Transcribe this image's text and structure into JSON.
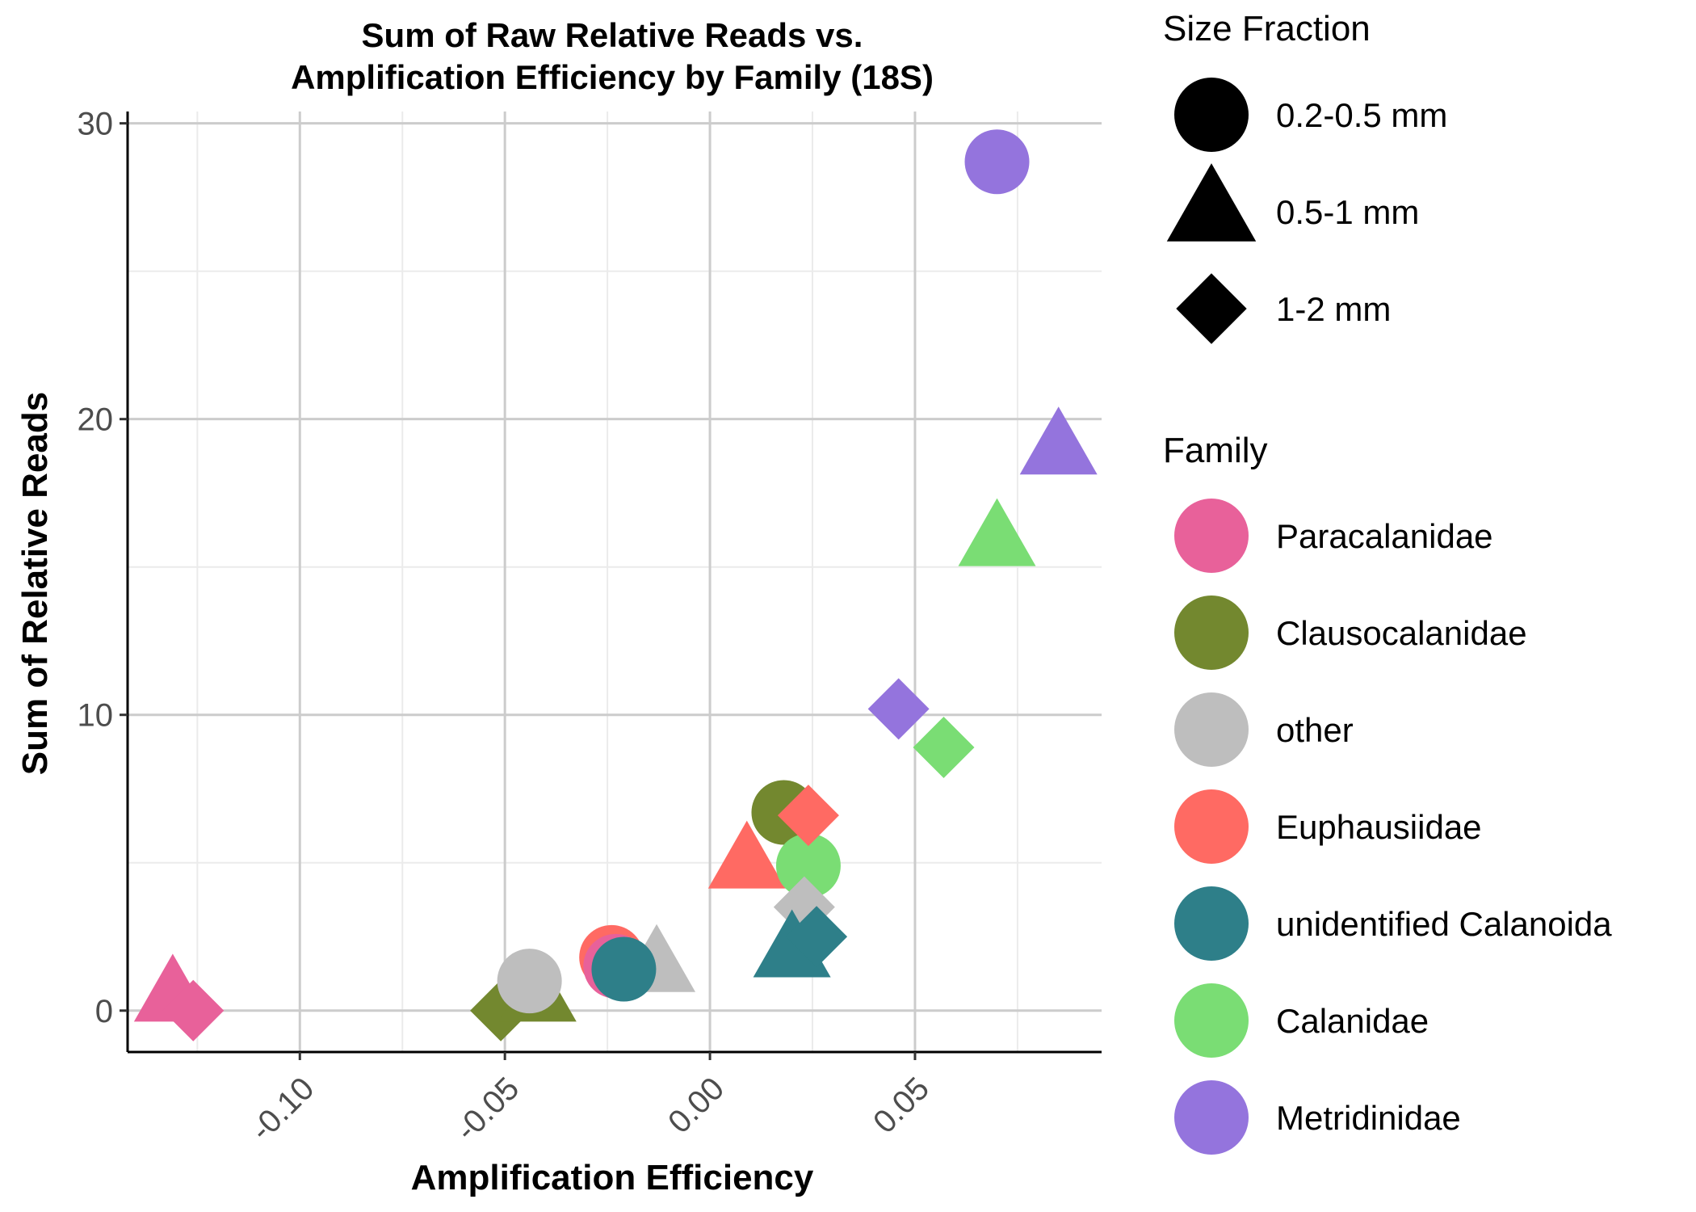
{
  "chart_data": {
    "type": "scatter",
    "title": "Sum of Raw Relative Reads vs.",
    "subtitle": "Amplification Efficiency by Family (18S)",
    "xlabel": "Amplification Efficiency",
    "ylabel": "Sum of Relative Reads",
    "xlim": [
      -0.142,
      0.0955
    ],
    "ylim": [
      -1.4,
      30.4
    ],
    "x_ticks": [
      -0.1,
      -0.05,
      0.0,
      0.05
    ],
    "x_tick_labels": [
      "-0.10",
      "-0.05",
      "0.00",
      "0.05"
    ],
    "y_ticks": [
      0,
      10,
      20,
      30
    ],
    "y_tick_labels": [
      "0",
      "10",
      "20",
      "30"
    ],
    "grid": true,
    "legend_position": "right",
    "shape_legend": {
      "title": "Size Fraction",
      "items": [
        {
          "label": "0.2-0.5 mm",
          "shape": "circle"
        },
        {
          "label": "0.5-1 mm",
          "shape": "triangle"
        },
        {
          "label": "1-2 mm",
          "shape": "diamond"
        }
      ]
    },
    "color_legend": {
      "title": "Family",
      "items": [
        {
          "label": "Paracalanidae",
          "color": "#E8619A"
        },
        {
          "label": "Clausocalanidae",
          "color": "#73882F"
        },
        {
          "label": "other",
          "color": "#BEBEBE"
        },
        {
          "label": "Euphausiidae",
          "color": "#FF6A63"
        },
        {
          "label": "unidentified Calanoida",
          "color": "#2E7F89"
        },
        {
          "label": "Calanidae",
          "color": "#7ADD74"
        },
        {
          "label": "Metridinidae",
          "color": "#9474DD"
        }
      ]
    },
    "points": [
      {
        "family": "Paracalanidae",
        "size": "0.5-1 mm",
        "x": -0.131,
        "y": 0.5
      },
      {
        "family": "Paracalanidae",
        "size": "1-2 mm",
        "x": -0.126,
        "y": 0.0
      },
      {
        "family": "Clausocalanidae",
        "size": "1-2 mm",
        "x": -0.051,
        "y": 0.0
      },
      {
        "family": "Clausocalanidae",
        "size": "0.5-1 mm",
        "x": -0.042,
        "y": 0.5
      },
      {
        "family": "other",
        "size": "0.2-0.5 mm",
        "x": -0.044,
        "y": 1.0
      },
      {
        "family": "Euphausiidae",
        "size": "0.2-0.5 mm",
        "x": -0.024,
        "y": 1.8
      },
      {
        "family": "Paracalanidae",
        "size": "0.2-0.5 mm",
        "x": -0.023,
        "y": 1.5
      },
      {
        "family": "other",
        "size": "0.5-1 mm",
        "x": -0.013,
        "y": 1.5
      },
      {
        "family": "unidentified Calanoida",
        "size": "0.2-0.5 mm",
        "x": -0.021,
        "y": 1.4
      },
      {
        "family": "Euphausiidae",
        "size": "0.5-1 mm",
        "x": 0.009,
        "y": 5.0
      },
      {
        "family": "Clausocalanidae",
        "size": "0.2-0.5 mm",
        "x": 0.018,
        "y": 6.7
      },
      {
        "family": "Calanidae",
        "size": "0.2-0.5 mm",
        "x": 0.024,
        "y": 4.9
      },
      {
        "family": "Euphausiidae",
        "size": "1-2 mm",
        "x": 0.024,
        "y": 6.6
      },
      {
        "family": "other",
        "size": "1-2 mm",
        "x": 0.023,
        "y": 3.5
      },
      {
        "family": "unidentified Calanoida",
        "size": "0.5-1 mm",
        "x": 0.02,
        "y": 2.0
      },
      {
        "family": "unidentified Calanoida",
        "size": "1-2 mm",
        "x": 0.026,
        "y": 2.5
      },
      {
        "family": "Metridinidae",
        "size": "1-2 mm",
        "x": 0.046,
        "y": 10.2
      },
      {
        "family": "Calanidae",
        "size": "1-2 mm",
        "x": 0.057,
        "y": 8.9
      },
      {
        "family": "Calanidae",
        "size": "0.5-1 mm",
        "x": 0.07,
        "y": 15.9
      },
      {
        "family": "Metridinidae",
        "size": "0.2-0.5 mm",
        "x": 0.07,
        "y": 28.7
      },
      {
        "family": "Metridinidae",
        "size": "0.5-1 mm",
        "x": 0.085,
        "y": 19.0
      }
    ]
  }
}
